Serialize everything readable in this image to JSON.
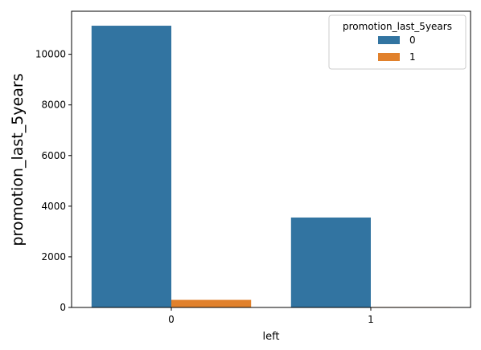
{
  "chart_data": {
    "type": "bar",
    "xlabel": "left",
    "ylabel": "promotion_last_5years",
    "categories": [
      "0",
      "1"
    ],
    "series": [
      {
        "name": "0",
        "values": [
          11128,
          3552
        ],
        "color": "#3274a1"
      },
      {
        "name": "1",
        "values": [
          300,
          19
        ],
        "color": "#e1812c"
      }
    ],
    "ylim": [
      0,
      11700
    ],
    "yticks": [
      0,
      2000,
      4000,
      6000,
      8000,
      10000
    ],
    "legend": {
      "title": "promotion_last_5years",
      "placement": "top-right"
    },
    "grid": false
  }
}
